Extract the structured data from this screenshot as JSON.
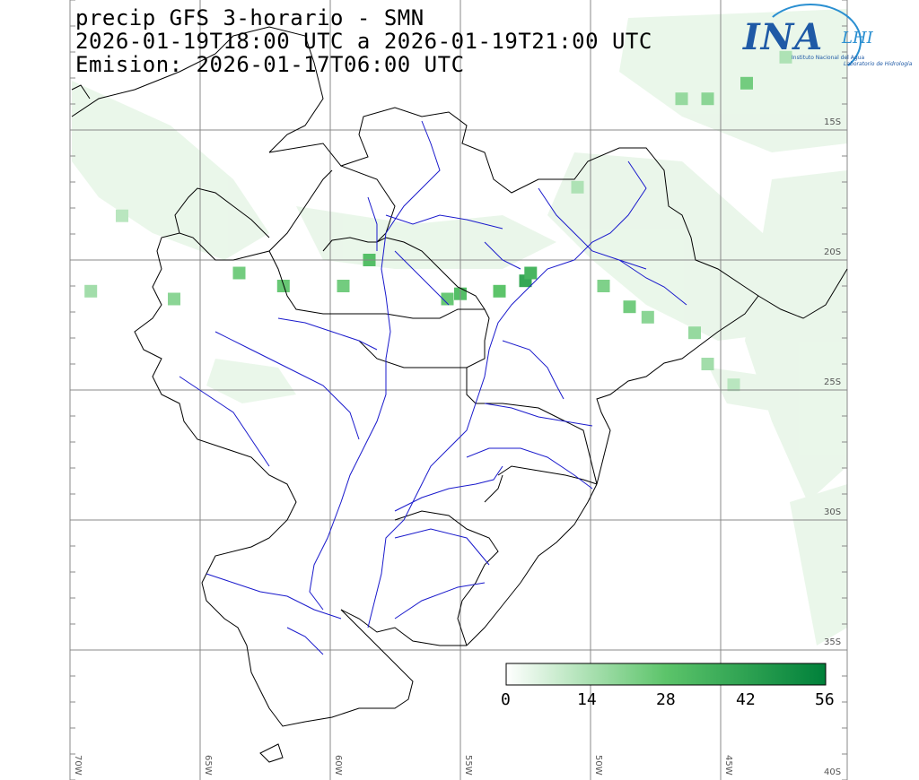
{
  "title": {
    "line1": "precip GFS 3-horario - SMN",
    "line2": "2026-01-19T18:00 UTC a 2026-01-19T21:00 UTC",
    "line3": "Emision: 2026-01-17T06:00 UTC"
  },
  "logo": {
    "ina": "INA",
    "lhi": "LHI",
    "subtitle1": "Instituto Nacional del Agua",
    "subtitle2": "Laboratorio de Hidrología"
  },
  "map": {
    "lat_labels": [
      "15S",
      "20S",
      "25S",
      "30S",
      "35S",
      "40S"
    ],
    "lon_labels": [
      "70W",
      "65W",
      "60W",
      "55W",
      "50W",
      "45W"
    ],
    "colors": {
      "grid": "#888888",
      "border": "#000000",
      "river": "#1a1acc",
      "precip_low": "#e5f5e5",
      "precip_high": "#00803a"
    }
  },
  "colorbar": {
    "ticks": [
      "0",
      "14",
      "28",
      "42",
      "56"
    ],
    "min": 0,
    "max": 56
  },
  "precip_cells": [
    {
      "lon": -59.5,
      "lat": -21.0,
      "v": 24
    },
    {
      "lon": -55.5,
      "lat": -21.5,
      "v": 26
    },
    {
      "lon": -55.0,
      "lat": -21.3,
      "v": 30
    },
    {
      "lon": -52.5,
      "lat": -20.8,
      "v": 40
    },
    {
      "lon": -52.3,
      "lat": -20.5,
      "v": 34
    },
    {
      "lon": -53.5,
      "lat": -21.2,
      "v": 28
    },
    {
      "lon": -58.5,
      "lat": -20.0,
      "v": 30
    },
    {
      "lon": -61.8,
      "lat": -21.0,
      "v": 26
    },
    {
      "lon": -63.5,
      "lat": -20.5,
      "v": 24
    },
    {
      "lon": -49.5,
      "lat": -21.0,
      "v": 22
    },
    {
      "lon": -48.5,
      "lat": -21.8,
      "v": 24
    },
    {
      "lon": -47.8,
      "lat": -22.2,
      "v": 20
    },
    {
      "lon": -46.0,
      "lat": -22.8,
      "v": 18
    },
    {
      "lon": -45.5,
      "lat": -24.0,
      "v": 16
    },
    {
      "lon": -50.5,
      "lat": -17.2,
      "v": 14
    },
    {
      "lon": -44.0,
      "lat": -13.2,
      "v": 24
    },
    {
      "lon": -45.5,
      "lat": -13.8,
      "v": 20
    },
    {
      "lon": -46.5,
      "lat": -13.8,
      "v": 18
    },
    {
      "lon": -66.0,
      "lat": -21.5,
      "v": 20
    },
    {
      "lon": -69.2,
      "lat": -21.2,
      "v": 16
    },
    {
      "lon": -68.0,
      "lat": -18.3,
      "v": 12
    },
    {
      "lon": -44.5,
      "lat": -24.8,
      "v": 12
    },
    {
      "lon": -42.5,
      "lat": -12.2,
      "v": 14
    }
  ]
}
